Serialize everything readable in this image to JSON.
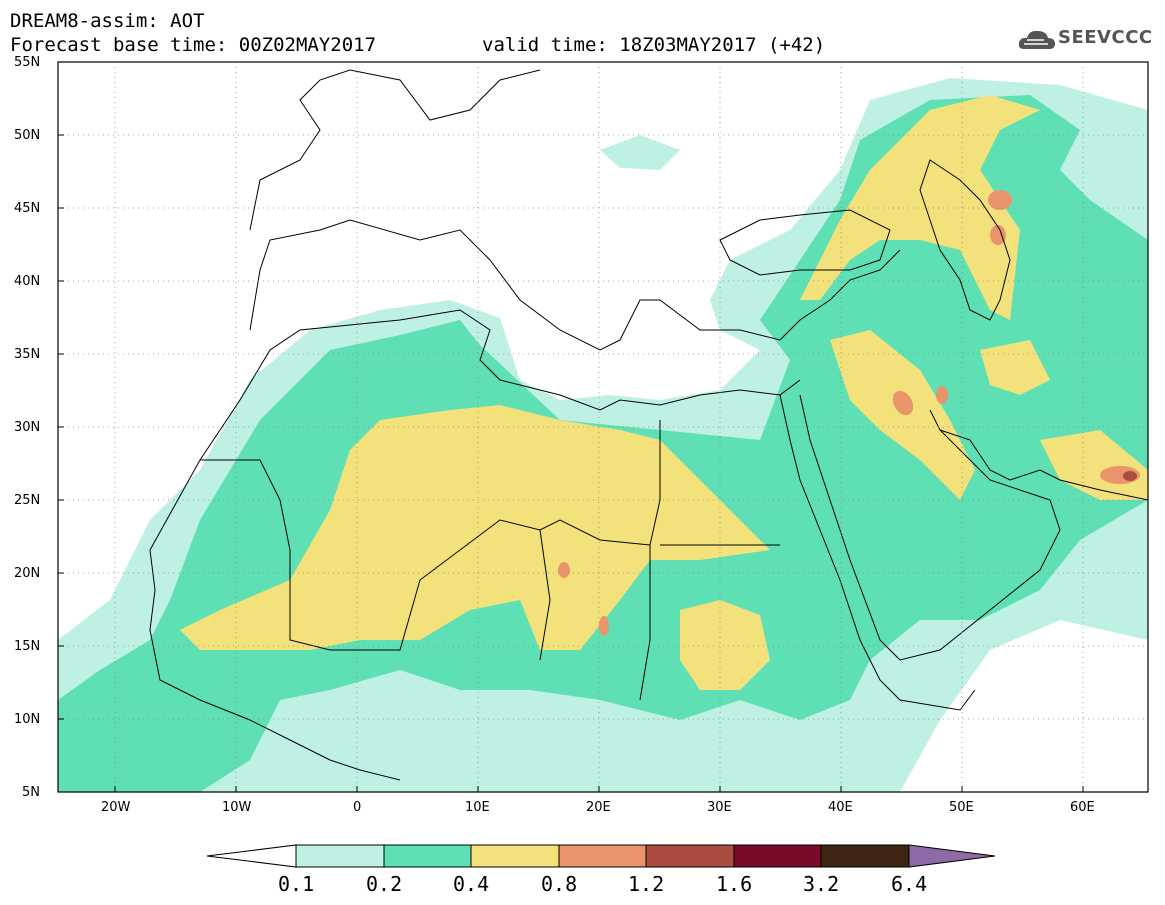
{
  "header": {
    "line1": "DREAM8-assim: AOT",
    "line2": "Forecast base time: 00Z02MAY2017",
    "valid": "valid time: 18Z03MAY2017 (+42)"
  },
  "logo": {
    "text": "SEEVCCC",
    "icon": "cloud-icon"
  },
  "map": {
    "lat_labels": [
      "55N",
      "50N",
      "45N",
      "40N",
      "35N",
      "30N",
      "25N",
      "20N",
      "15N",
      "10N",
      "5N"
    ],
    "lon_labels": [
      "20W",
      "10W",
      "0",
      "10E",
      "20E",
      "30E",
      "40E",
      "50E",
      "60E"
    ],
    "lat_range": [
      5,
      55
    ],
    "lon_range": [
      -25,
      65
    ],
    "grid": "dotted"
  },
  "colorbar": {
    "labels": [
      "0.1",
      "0.2",
      "0.4",
      "0.8",
      "1.2",
      "1.6",
      "3.2",
      "6.4"
    ],
    "colors": [
      "#ffffff",
      "#bff0e4",
      "#5ee0b4",
      "#f3e27c",
      "#ea946c",
      "#aa4c40",
      "#7a0a28",
      "#3e2412",
      "#8e6aa8"
    ]
  }
}
